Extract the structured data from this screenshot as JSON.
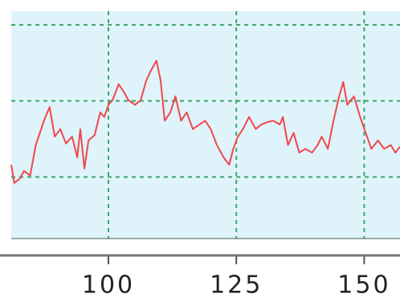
{
  "chart_data": {
    "type": "line",
    "x": [
      81.0,
      81.6,
      82.7,
      83.5,
      84.7,
      85.8,
      87.4,
      88.5,
      89.5,
      90.6,
      91.7,
      92.9,
      93.9,
      94.5,
      95.3,
      96.1,
      97.3,
      98.4,
      99.2,
      100,
      100.8,
      102.0,
      103.1,
      103.9,
      105.2,
      106.3,
      107.4,
      108.3,
      109.4,
      110.2,
      111.0,
      112.1,
      113.1,
      114.2,
      115.3,
      116.5,
      117.8,
      118.9,
      120.0,
      121.2,
      122.5,
      123.6,
      124.4,
      125.3,
      126.3,
      127.5,
      128.8,
      129.9,
      131.0,
      132.2,
      133.5,
      134.1,
      135.1,
      136.2,
      137.3,
      138.5,
      139.8,
      140.9,
      141.7,
      142.9,
      144.0,
      145.1,
      145.9,
      146.7,
      148.0,
      149.2,
      150.3,
      151.4,
      152.7,
      153.9,
      155.2,
      156.1,
      157.0
    ],
    "series": [
      {
        "color": "#f0474c",
        "values": [
          1.16,
          0.92,
          0.98,
          1.08,
          1.02,
          1.42,
          1.74,
          1.92,
          1.53,
          1.63,
          1.44,
          1.53,
          1.26,
          1.63,
          1.11,
          1.48,
          1.55,
          1.85,
          1.79,
          1.95,
          2.01,
          2.22,
          2.11,
          2.01,
          1.95,
          2.01,
          2.27,
          2.4,
          2.53,
          2.27,
          1.74,
          1.85,
          2.06,
          1.74,
          1.85,
          1.63,
          1.69,
          1.74,
          1.63,
          1.42,
          1.26,
          1.16,
          1.37,
          1.53,
          1.63,
          1.79,
          1.63,
          1.69,
          1.72,
          1.74,
          1.69,
          1.79,
          1.42,
          1.58,
          1.32,
          1.37,
          1.32,
          1.42,
          1.53,
          1.37,
          1.74,
          2.06,
          2.25,
          1.95,
          2.06,
          1.79,
          1.58,
          1.37,
          1.48,
          1.37,
          1.42,
          1.32,
          1.4
        ]
      }
    ],
    "xlim": [
      81,
      157
    ],
    "xticks": [
      100,
      125,
      150
    ],
    "ylim": [
      0.19,
      3.18
    ],
    "yticks": [
      1,
      2,
      3
    ],
    "grid": true,
    "background": "#dff3fa",
    "grid_color": "#3fa56a"
  }
}
